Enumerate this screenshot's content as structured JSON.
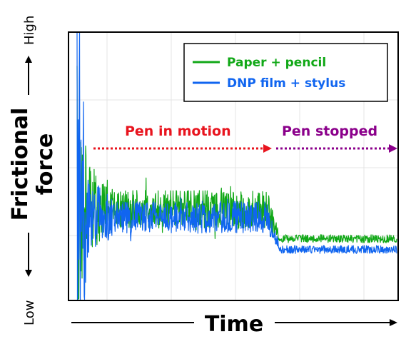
{
  "chart_data": {
    "type": "line",
    "title": "",
    "xlabel": "Time",
    "ylabel_line1": "Frictional",
    "ylabel_line2": "force",
    "y_high_label": "High",
    "y_low_label": "Low",
    "x_ticks_shown": false,
    "y_ticks_shown": false,
    "grid": true,
    "legend_position": "top-right",
    "series": [
      {
        "name": "Paper + pencil",
        "color": "#11a817",
        "description_values": {
          "motion_level": 0.34,
          "motion_noise": 0.07,
          "stopped_level": 0.23,
          "stopped_noise": 0.015
        }
      },
      {
        "name": "DNP film + stylus",
        "color": "#1065f0",
        "description_values": {
          "motion_level": 0.31,
          "motion_noise": 0.06,
          "stopped_level": 0.19,
          "stopped_noise": 0.015
        }
      }
    ],
    "annotations": [
      {
        "text": "Pen in motion",
        "color": "#e8141e"
      },
      {
        "text": "Pen stopped",
        "color": "#8b008b"
      }
    ]
  }
}
